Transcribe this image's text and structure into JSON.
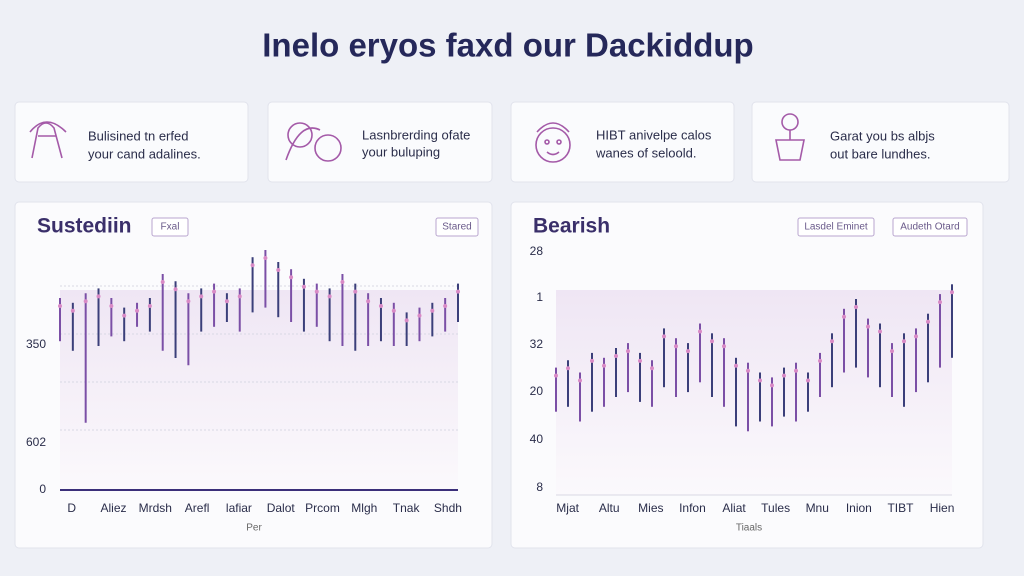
{
  "header": {
    "title": "Inelo eryos faxd our Dackiddup"
  },
  "cards": [
    {
      "lines": [
        "Bulisined tn erfed",
        "your cand adalines."
      ]
    },
    {
      "lines": [
        "Lasnbrerding ofate",
        "your buluping"
      ]
    },
    {
      "lines": [
        "HIBT anivelpe calos",
        "wanes of seloold."
      ]
    },
    {
      "lines": [
        "Garat you bs albjs",
        "out bare lundhes."
      ]
    }
  ],
  "chart_data": [
    {
      "type": "candlestick",
      "title": "Sustediin",
      "badges": [
        "Fxal",
        "Stared"
      ],
      "ylabels": [
        "350",
        "602",
        "0"
      ],
      "xlabel": "Per",
      "categories": [
        "D",
        "Aliez",
        "Mrdsh",
        "Arefl",
        "lafiar",
        "Dalot",
        "Prcom",
        "Mlgh",
        "Tnak",
        "Shdh"
      ],
      "ylim": [
        0,
        100
      ],
      "colors": [
        "#7b4fa6",
        "#3b3f7a"
      ],
      "grid": true,
      "highs": [
        80,
        78,
        82,
        84,
        80,
        76,
        78,
        80,
        90,
        87,
        82,
        84,
        86,
        82,
        84,
        97,
        100,
        95,
        92,
        88,
        86,
        84,
        90,
        86,
        82,
        80,
        78,
        74,
        76,
        78,
        80,
        86
      ],
      "lows": [
        62,
        58,
        28,
        60,
        64,
        62,
        68,
        66,
        58,
        55,
        52,
        66,
        68,
        70,
        66,
        74,
        76,
        72,
        70,
        66,
        68,
        62,
        60,
        58,
        60,
        62,
        60,
        60,
        62,
        64,
        66,
        70
      ]
    },
    {
      "type": "candlestick",
      "title": "Bearish",
      "badges": [
        "Lasdel Eminet",
        "Audeth Otard"
      ],
      "ylabels": [
        "28",
        "1",
        "32",
        "20",
        "40",
        "8"
      ],
      "xlabel": "Tiaals",
      "categories": [
        "Mjat",
        "Altu",
        "Mies",
        "Infon",
        "Aliat",
        "Tules",
        "Mnu",
        "Inion",
        "TIBT",
        "Hien"
      ],
      "ylim": [
        0,
        100
      ],
      "colors": [
        "#7b4fa6",
        "#3b3f7a"
      ],
      "grid": false,
      "highs": [
        52,
        55,
        50,
        58,
        56,
        60,
        62,
        58,
        55,
        68,
        64,
        62,
        70,
        66,
        64,
        56,
        54,
        50,
        48,
        52,
        54,
        50,
        58,
        66,
        76,
        80,
        72,
        70,
        62,
        66,
        68,
        74,
        82,
        86
      ],
      "lows": [
        34,
        36,
        30,
        34,
        36,
        40,
        42,
        38,
        36,
        44,
        40,
        42,
        46,
        40,
        36,
        28,
        26,
        30,
        28,
        32,
        30,
        34,
        40,
        44,
        50,
        52,
        48,
        44,
        40,
        36,
        42,
        46,
        52,
        56
      ]
    }
  ]
}
